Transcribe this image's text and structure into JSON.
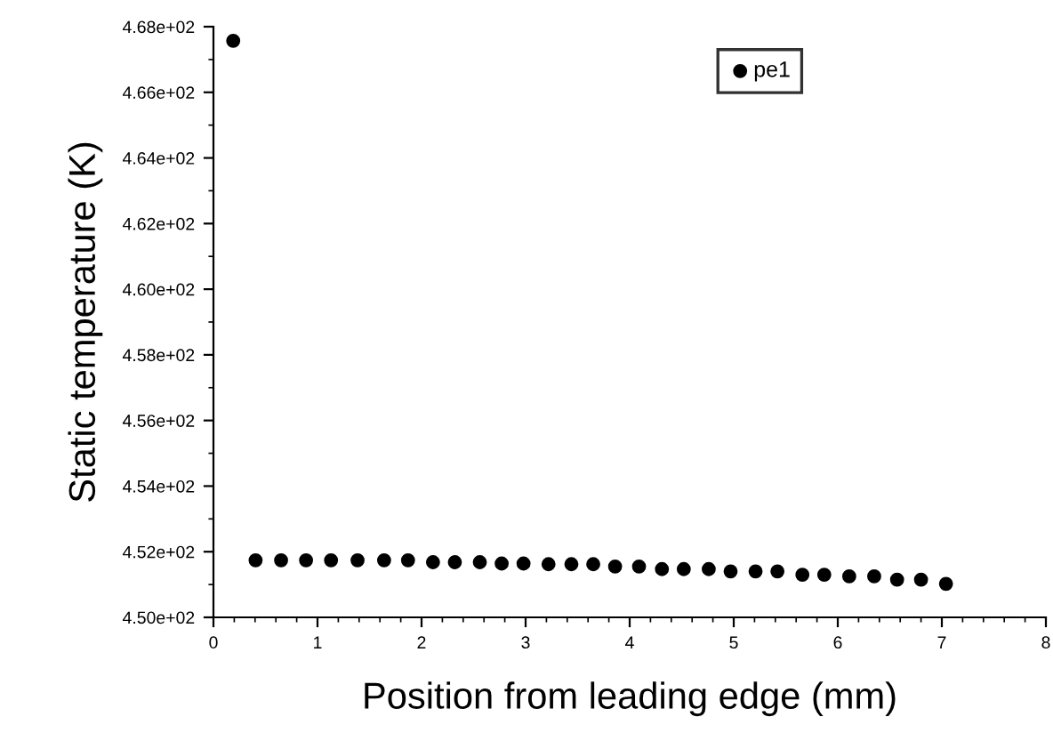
{
  "chart_data": {
    "type": "scatter",
    "xlabel": "Position from leading edge (mm)",
    "ylabel": "Static temperature (K)",
    "xlim": [
      0,
      8
    ],
    "xticks": [
      0,
      1,
      2,
      3,
      4,
      5,
      6,
      7,
      8
    ],
    "ylim": [
      450,
      468
    ],
    "yticks": [
      {
        "value": 450,
        "label": "4.50e+02"
      },
      {
        "value": 452,
        "label": "4.52e+02"
      },
      {
        "value": 454,
        "label": "4.54e+02"
      },
      {
        "value": 456,
        "label": "4.56e+02"
      },
      {
        "value": 458,
        "label": "4.58e+02"
      },
      {
        "value": 460,
        "label": "4.60e+02"
      },
      {
        "value": 462,
        "label": "4.62e+02"
      },
      {
        "value": 464,
        "label": "4.64e+02"
      },
      {
        "value": 466,
        "label": "4.66e+02"
      },
      {
        "value": 468,
        "label": "4.68e+02"
      }
    ],
    "grid": false,
    "legend": "top right",
    "marker": "circle",
    "series": [
      {
        "name": "pe1",
        "color": "#000000",
        "x": [
          0.19,
          0.405,
          0.65,
          0.89,
          1.13,
          1.385,
          1.64,
          1.87,
          2.11,
          2.32,
          2.56,
          2.77,
          2.98,
          3.22,
          3.44,
          3.65,
          3.86,
          4.09,
          4.31,
          4.52,
          4.76,
          4.97,
          5.21,
          5.42,
          5.66,
          5.87,
          6.11,
          6.35,
          6.57,
          6.8,
          7.04
        ],
        "values": [
          467.57,
          451.74,
          451.74,
          451.74,
          451.74,
          451.74,
          451.74,
          451.74,
          451.68,
          451.68,
          451.68,
          451.64,
          451.64,
          451.62,
          451.62,
          451.62,
          451.55,
          451.55,
          451.47,
          451.47,
          451.47,
          451.4,
          451.4,
          451.4,
          451.3,
          451.3,
          451.25,
          451.25,
          451.15,
          451.15,
          451.02
        ]
      }
    ]
  }
}
